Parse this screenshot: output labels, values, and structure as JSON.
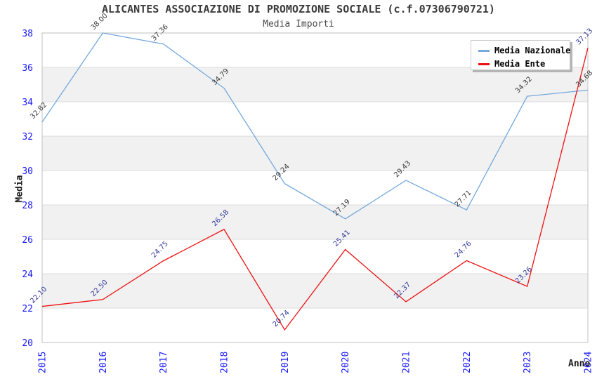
{
  "chart_data": {
    "type": "line",
    "title": "ALICANTES ASSOCIAZIONE DI PROMOZIONE SOCIALE (c.f.07306790721)",
    "subtitle": "Media Importi",
    "xlabel": "Anno",
    "ylabel": "Media",
    "categories": [
      "2015",
      "2016",
      "2017",
      "2018",
      "2019",
      "2020",
      "2021",
      "2022",
      "2023",
      "2024"
    ],
    "yticks": [
      20,
      22,
      24,
      26,
      28,
      30,
      32,
      34,
      36,
      38
    ],
    "ylim": [
      20,
      38
    ],
    "grid": true,
    "legend_position": "top-right",
    "series": [
      {
        "name": "Media Nazionale",
        "color": "#74a9dd",
        "label_color": "#3c3c3c",
        "values": [
          32.82,
          38.0,
          37.36,
          34.79,
          29.24,
          27.19,
          29.43,
          27.71,
          34.32,
          34.68
        ]
      },
      {
        "name": "Media Ente",
        "color": "#ee1111",
        "label_color": "#333a99",
        "values": [
          22.1,
          22.5,
          24.75,
          26.58,
          20.74,
          25.41,
          22.37,
          24.76,
          23.26,
          37.13
        ]
      }
    ],
    "colors": {
      "tick_label": "#1a1aff",
      "band": "#f1f1f1",
      "gridline": "#dcdcdc",
      "border": "#c2c2c2",
      "title": "#3c3c3c"
    }
  }
}
